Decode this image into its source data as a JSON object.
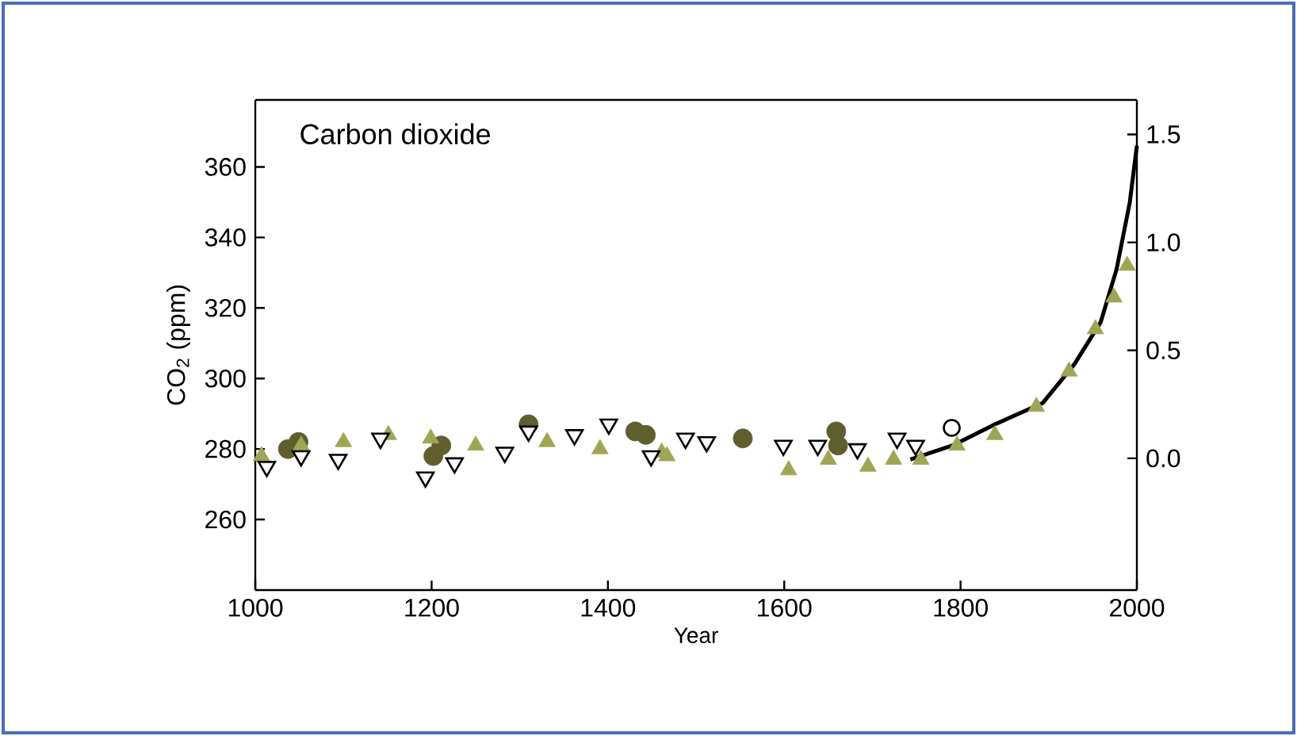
{
  "chart_data": {
    "type": "scatter",
    "title": "Carbon dioxide",
    "xlabel": "Year",
    "ylabel": "CO$_{2}$ (ppm)",
    "xlim": [
      1000,
      2000
    ],
    "xticks": [
      1000,
      1200,
      1400,
      1600,
      1800,
      2000
    ],
    "ylim": [
      240,
      379
    ],
    "yticks": [
      260,
      280,
      300,
      320,
      340,
      360
    ],
    "y2lim": [
      -0.61,
      1.66
    ],
    "y2ticks": [
      {
        "value": 0,
        "label": "0.0"
      },
      {
        "value": 0.5,
        "label": "0.5"
      },
      {
        "value": 1,
        "label": "1.0"
      },
      {
        "value": 1.5,
        "label": "1.5"
      }
    ],
    "series": [
      {
        "color": "#5e5e2e",
        "marker": "circle",
        "x": [
          1037,
          1049,
          1202,
          1211,
          1310,
          1431,
          1443,
          1553,
          1659,
          1661
        ],
        "values": [
          280,
          282,
          278,
          281,
          287,
          285,
          284,
          283,
          285,
          281
        ]
      },
      {
        "color": "#9ea655",
        "marker": "triangle",
        "x": [
          1007,
          1052,
          1100,
          1151,
          1199,
          1250,
          1331,
          1391,
          1461,
          1467,
          1605,
          1650,
          1695,
          1724,
          1755,
          1796,
          1839,
          1886,
          1923,
          1953,
          1974,
          1989
        ],
        "values": [
          278,
          281,
          282,
          284,
          283,
          281,
          282,
          280,
          279,
          278,
          274,
          277,
          275,
          277,
          277,
          281,
          284,
          292,
          302,
          314,
          323,
          332
        ]
      },
      {
        "color": "#000000",
        "marker": "triangle-down",
        "x": [
          1013,
          1052,
          1094,
          1142,
          1193,
          1226,
          1283,
          1310,
          1362,
          1401,
          1449,
          1488,
          1512,
          1599,
          1638,
          1683,
          1728,
          1749
        ],
        "values": [
          275,
          278,
          277,
          283,
          272,
          276,
          279,
          285,
          284,
          287,
          278,
          283,
          282,
          281,
          281,
          280,
          283,
          281
        ]
      },
      {
        "color": "#000000",
        "marker": "circle-open",
        "x": [
          1790
        ],
        "values": [
          286
        ]
      },
      {
        "type": "line",
        "color": "#000000",
        "marker": "none",
        "x": [
          1743,
          1791,
          1839,
          1893,
          1929,
          1959,
          1977,
          1992,
          2000
        ],
        "values": [
          277,
          281,
          287,
          293,
          304,
          316,
          331,
          350,
          366
        ]
      }
    ]
  }
}
